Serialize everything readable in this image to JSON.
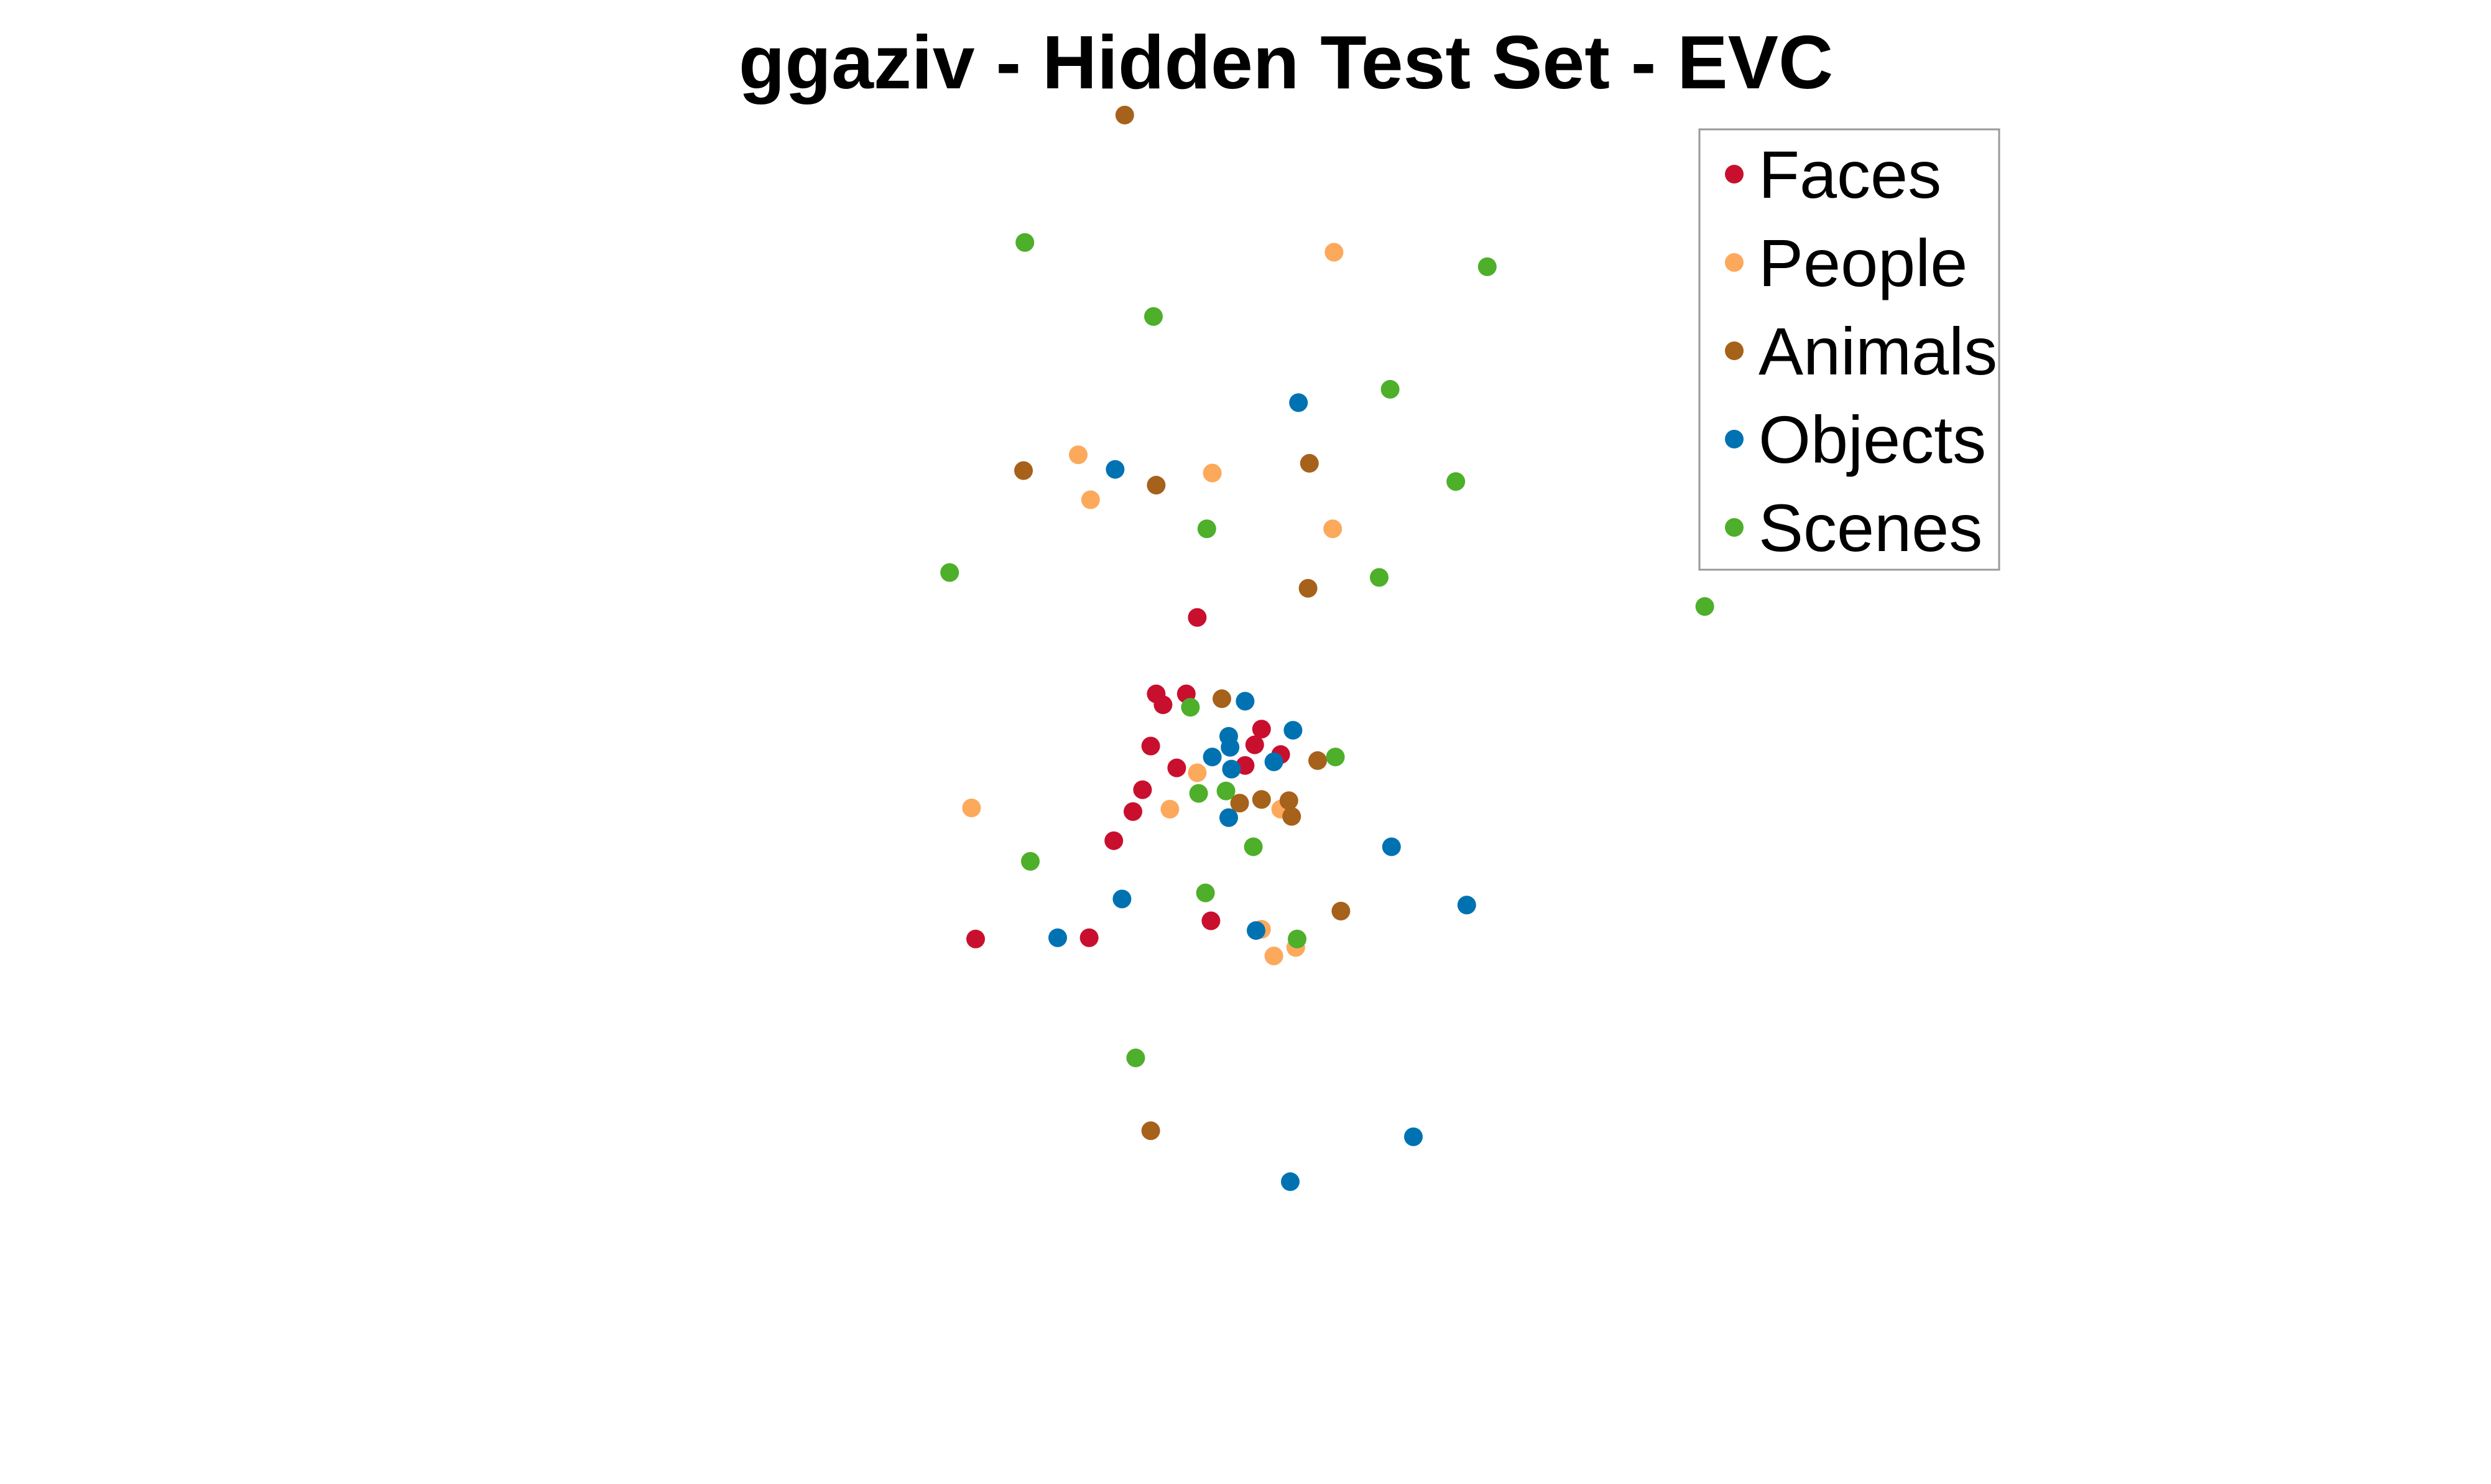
{
  "chart_data": {
    "type": "scatter",
    "title": "ggaziv - Hidden Test Set - EVC",
    "xlabel": "",
    "ylabel": "",
    "axes_visible": false,
    "grid": false,
    "xlim": [
      0,
      100
    ],
    "ylim": [
      0,
      100
    ],
    "legend": {
      "placement": "top-right",
      "entries": [
        "Faces",
        "People",
        "Animals",
        "Objects",
        "Scenes"
      ]
    },
    "series": [
      {
        "name": "Faces",
        "color": "#c8102e",
        "x": [
          26.5,
          34.8,
          36.6,
          38.0,
          38.7,
          39.3,
          39.7,
          40.2,
          41.2,
          41.9,
          42.7,
          43.7,
          46.2,
          46.9,
          47.4,
          48.8
        ],
        "y": [
          32.1,
          32.2,
          40.2,
          42.6,
          44.4,
          48.0,
          52.3,
          51.4,
          46.2,
          52.3,
          58.6,
          33.6,
          46.4,
          48.1,
          49.4,
          47.3
        ]
      },
      {
        "name": "People",
        "color": "#fca95c",
        "x": [
          26.2,
          34.0,
          34.9,
          40.7,
          42.7,
          43.8,
          47.4,
          48.3,
          48.8,
          49.9,
          52.6,
          52.7
        ],
        "y": [
          42.9,
          72.0,
          68.3,
          42.8,
          45.8,
          70.5,
          32.9,
          30.7,
          42.8,
          31.4,
          65.9,
          88.7
        ]
      },
      {
        "name": "Animals",
        "color": "#a6611a",
        "x": [
          37.4,
          30.0,
          39.7,
          44.5,
          45.8,
          47.4,
          49.4,
          50.9,
          50.8,
          49.6,
          51.5,
          53.2,
          39.3
        ],
        "y": [
          100.0,
          70.7,
          69.5,
          51.9,
          43.3,
          43.6,
          43.5,
          71.3,
          61.0,
          42.2,
          46.8,
          34.4,
          16.3
        ]
      },
      {
        "name": "Objects",
        "color": "#0072b2",
        "x": [
          32.5,
          37.2,
          36.7,
          43.8,
          45.0,
          45.1,
          45.2,
          45.0,
          46.2,
          47.0,
          48.3,
          49.7,
          50.1,
          56.9,
          62.4,
          58.5,
          49.5
        ],
        "y": [
          32.2,
          35.4,
          70.8,
          47.1,
          48.8,
          47.9,
          46.1,
          42.1,
          51.7,
          32.8,
          46.7,
          49.3,
          76.3,
          39.7,
          34.9,
          15.8,
          12.1
        ]
      },
      {
        "name": "Scenes",
        "color": "#4daf2a",
        "x": [
          24.6,
          30.5,
          30.1,
          39.5,
          43.4,
          42.2,
          42.8,
          44.8,
          43.3,
          46.8,
          50.0,
          52.8,
          56.8,
          56.0,
          61.6,
          63.9,
          79.8,
          38.2
        ],
        "y": [
          62.3,
          38.5,
          89.5,
          83.4,
          65.9,
          51.2,
          44.1,
          44.3,
          35.9,
          39.7,
          32.1,
          47.1,
          77.4,
          61.9,
          69.8,
          87.5,
          59.5,
          22.3
        ]
      }
    ]
  }
}
